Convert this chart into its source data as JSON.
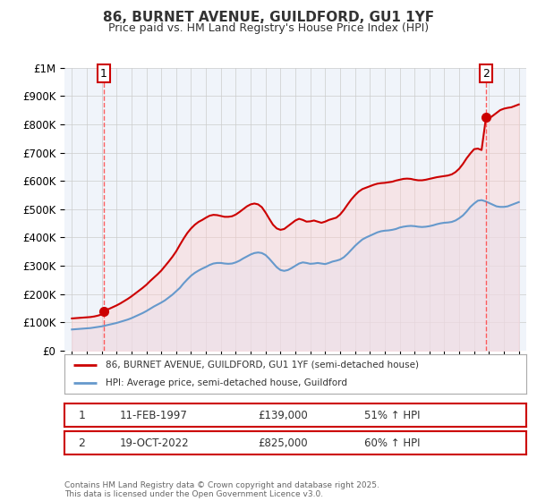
{
  "title": "86, BURNET AVENUE, GUILDFORD, GU1 1YF",
  "subtitle": "Price paid vs. HM Land Registry's House Price Index (HPI)",
  "ylim": [
    0,
    1000000
  ],
  "yticks": [
    0,
    100000,
    200000,
    300000,
    400000,
    500000,
    600000,
    700000,
    800000,
    900000,
    1000000
  ],
  "ytick_labels": [
    "£0",
    "£100K",
    "£200K",
    "£300K",
    "£400K",
    "£500K",
    "£600K",
    "£700K",
    "£800K",
    "£900K",
    "£1M"
  ],
  "xlim_start": 1994.5,
  "xlim_end": 2025.5,
  "sale1_date": 1997.12,
  "sale1_price": 139000,
  "sale1_label": "1",
  "sale2_date": 2022.8,
  "sale2_price": 825000,
  "sale2_label": "2",
  "red_line_color": "#cc0000",
  "blue_line_color": "#6699cc",
  "red_fill_color": "#ffcccc",
  "blue_fill_color": "#ddeeff",
  "grid_color": "#cccccc",
  "background_color": "#f0f4fa",
  "dashed_line_color": "#ff4444",
  "footer_text": "Contains HM Land Registry data © Crown copyright and database right 2025.\nThis data is licensed under the Open Government Licence v3.0.",
  "hpi_years": [
    1995,
    1995.25,
    1995.5,
    1995.75,
    1996,
    1996.25,
    1996.5,
    1996.75,
    1997,
    1997.25,
    1997.5,
    1997.75,
    1998,
    1998.25,
    1998.5,
    1998.75,
    1999,
    1999.25,
    1999.5,
    1999.75,
    2000,
    2000.25,
    2000.5,
    2000.75,
    2001,
    2001.25,
    2001.5,
    2001.75,
    2002,
    2002.25,
    2002.5,
    2002.75,
    2003,
    2003.25,
    2003.5,
    2003.75,
    2004,
    2004.25,
    2004.5,
    2004.75,
    2005,
    2005.25,
    2005.5,
    2005.75,
    2006,
    2006.25,
    2006.5,
    2006.75,
    2007,
    2007.25,
    2007.5,
    2007.75,
    2008,
    2008.25,
    2008.5,
    2008.75,
    2009,
    2009.25,
    2009.5,
    2009.75,
    2010,
    2010.25,
    2010.5,
    2010.75,
    2011,
    2011.25,
    2011.5,
    2011.75,
    2012,
    2012.25,
    2012.5,
    2012.75,
    2013,
    2013.25,
    2013.5,
    2013.75,
    2014,
    2014.25,
    2014.5,
    2014.75,
    2015,
    2015.25,
    2015.5,
    2015.75,
    2016,
    2016.25,
    2016.5,
    2016.75,
    2017,
    2017.25,
    2017.5,
    2017.75,
    2018,
    2018.25,
    2018.5,
    2018.75,
    2019,
    2019.25,
    2019.5,
    2019.75,
    2020,
    2020.25,
    2020.5,
    2020.75,
    2021,
    2021.25,
    2021.5,
    2021.75,
    2022,
    2022.25,
    2022.5,
    2022.75,
    2023,
    2023.25,
    2023.5,
    2023.75,
    2024,
    2024.25,
    2024.5,
    2024.75,
    2025
  ],
  "hpi_values": [
    75000,
    76000,
    77000,
    78000,
    79000,
    80000,
    82000,
    84000,
    86000,
    89000,
    92000,
    95000,
    98000,
    102000,
    106000,
    110000,
    115000,
    121000,
    127000,
    133000,
    140000,
    148000,
    156000,
    163000,
    170000,
    178000,
    188000,
    198000,
    210000,
    222000,
    238000,
    252000,
    265000,
    275000,
    283000,
    290000,
    296000,
    303000,
    308000,
    310000,
    310000,
    308000,
    307000,
    308000,
    312000,
    318000,
    326000,
    333000,
    340000,
    345000,
    347000,
    345000,
    338000,
    325000,
    310000,
    295000,
    285000,
    282000,
    285000,
    292000,
    300000,
    308000,
    312000,
    310000,
    307000,
    308000,
    310000,
    308000,
    306000,
    310000,
    315000,
    318000,
    322000,
    330000,
    342000,
    356000,
    370000,
    382000,
    393000,
    400000,
    406000,
    412000,
    418000,
    422000,
    424000,
    425000,
    427000,
    430000,
    435000,
    438000,
    440000,
    441000,
    440000,
    438000,
    437000,
    438000,
    440000,
    443000,
    447000,
    450000,
    452000,
    453000,
    455000,
    460000,
    468000,
    478000,
    492000,
    508000,
    520000,
    530000,
    532000,
    528000,
    522000,
    516000,
    510000,
    508000,
    508000,
    510000,
    515000,
    520000,
    525000
  ],
  "red_years": [
    1995,
    1995.25,
    1995.5,
    1995.75,
    1996,
    1996.25,
    1996.5,
    1996.75,
    1997,
    1997.12,
    1997.25,
    1997.5,
    1997.75,
    1998,
    1998.25,
    1998.5,
    1998.75,
    1999,
    1999.25,
    1999.5,
    1999.75,
    2000,
    2000.25,
    2000.5,
    2000.75,
    2001,
    2001.25,
    2001.5,
    2001.75,
    2002,
    2002.25,
    2002.5,
    2002.75,
    2003,
    2003.25,
    2003.5,
    2003.75,
    2004,
    2004.25,
    2004.5,
    2004.75,
    2005,
    2005.25,
    2005.5,
    2005.75,
    2006,
    2006.25,
    2006.5,
    2006.75,
    2007,
    2007.25,
    2007.5,
    2007.75,
    2008,
    2008.25,
    2008.5,
    2008.75,
    2009,
    2009.25,
    2009.5,
    2009.75,
    2010,
    2010.25,
    2010.5,
    2010.75,
    2011,
    2011.25,
    2011.5,
    2011.75,
    2012,
    2012.25,
    2012.5,
    2012.75,
    2013,
    2013.25,
    2013.5,
    2013.75,
    2014,
    2014.25,
    2014.5,
    2014.75,
    2015,
    2015.25,
    2015.5,
    2015.75,
    2016,
    2016.25,
    2016.5,
    2016.75,
    2017,
    2017.25,
    2017.5,
    2017.75,
    2018,
    2018.25,
    2018.5,
    2018.75,
    2019,
    2019.25,
    2019.5,
    2019.75,
    2020,
    2020.25,
    2020.5,
    2020.75,
    2021,
    2021.25,
    2021.5,
    2021.75,
    2022,
    2022.25,
    2022.5,
    2022.8,
    2023,
    2023.25,
    2023.5,
    2023.75,
    2024,
    2024.25,
    2024.5,
    2024.75,
    2025
  ],
  "red_values": [
    114000,
    115000,
    116000,
    117000,
    118000,
    119000,
    121000,
    124000,
    128000,
    139000,
    143000,
    148000,
    154000,
    160000,
    167000,
    175000,
    183000,
    192000,
    202000,
    212000,
    222000,
    233000,
    246000,
    258000,
    270000,
    283000,
    299000,
    315000,
    332000,
    351000,
    374000,
    396000,
    416000,
    432000,
    445000,
    455000,
    462000,
    470000,
    477000,
    480000,
    479000,
    476000,
    473000,
    473000,
    475000,
    481000,
    490000,
    500000,
    510000,
    517000,
    520000,
    517000,
    507000,
    488000,
    466000,
    445000,
    432000,
    427000,
    430000,
    440000,
    450000,
    460000,
    466000,
    462000,
    456000,
    457000,
    460000,
    456000,
    452000,
    456000,
    462000,
    466000,
    470000,
    481000,
    497000,
    516000,
    534000,
    549000,
    562000,
    571000,
    576000,
    581000,
    586000,
    590000,
    592000,
    593000,
    595000,
    597000,
    601000,
    604000,
    607000,
    608000,
    607000,
    604000,
    602000,
    602000,
    604000,
    607000,
    610000,
    613000,
    615000,
    617000,
    619000,
    623000,
    631000,
    643000,
    660000,
    680000,
    697000,
    712000,
    714000,
    709000,
    825000,
    820000,
    830000,
    840000,
    850000,
    855000,
    858000,
    860000,
    865000,
    870000
  ]
}
